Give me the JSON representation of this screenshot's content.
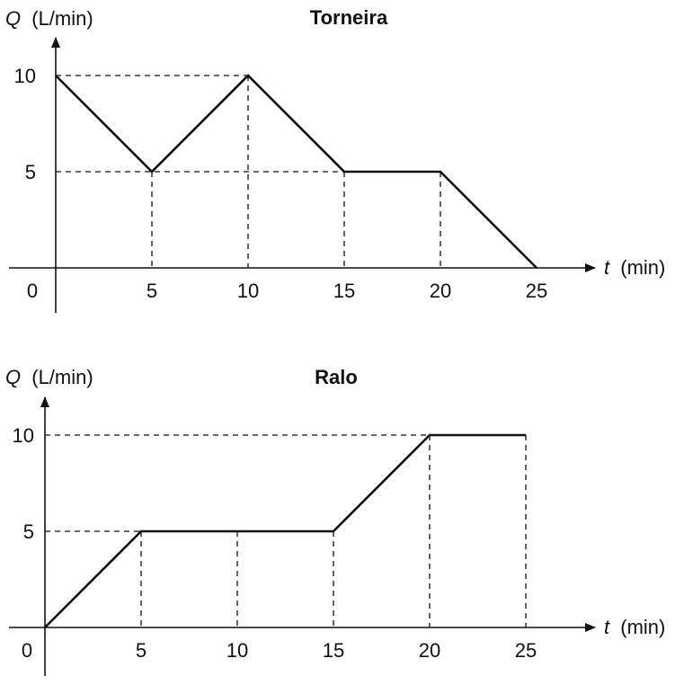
{
  "chart_data": [
    {
      "type": "line",
      "title": "Torneira",
      "ylabel_var": "Q",
      "ylabel_unit": "(L/min)",
      "xlabel_var": "t",
      "xlabel_unit": "(min)",
      "origin_label": "0",
      "x_ticks": [
        5,
        10,
        15,
        20,
        25
      ],
      "y_ticks": [
        5,
        10
      ],
      "xlim": [
        0,
        25
      ],
      "ylim": [
        0,
        10
      ],
      "grid": false,
      "x": [
        0,
        5,
        10,
        15,
        20,
        25
      ],
      "y": [
        10,
        5,
        10,
        5,
        5,
        0
      ]
    },
    {
      "type": "line",
      "title": "Ralo",
      "ylabel_var": "Q",
      "ylabel_unit": "(L/min)",
      "xlabel_var": "t",
      "xlabel_unit": "(min)",
      "origin_label": "0",
      "x_ticks": [
        5,
        10,
        15,
        20,
        25
      ],
      "y_ticks": [
        5,
        10
      ],
      "xlim": [
        0,
        25
      ],
      "ylim": [
        0,
        10
      ],
      "grid": false,
      "x": [
        0,
        5,
        10,
        15,
        20,
        25
      ],
      "y": [
        0,
        5,
        5,
        5,
        10,
        10
      ]
    }
  ]
}
